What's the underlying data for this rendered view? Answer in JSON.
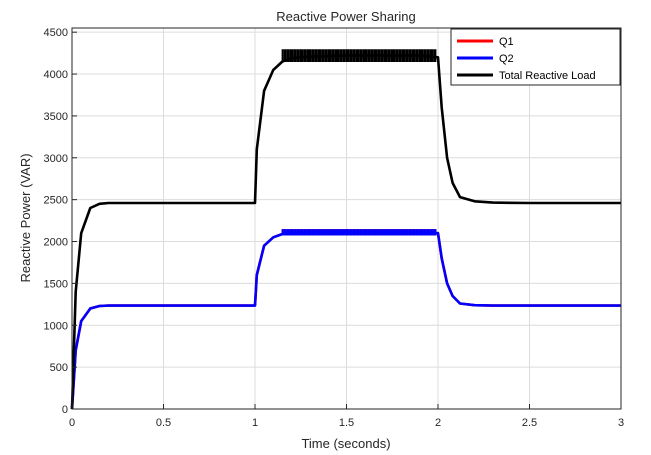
{
  "chart_data": {
    "type": "line",
    "title": "Reactive Power Sharing",
    "xlabel": "Time (seconds)",
    "ylabel": "Reactive Power (VAR)",
    "xlim": [
      0,
      3
    ],
    "ylim": [
      0,
      4550
    ],
    "xticks": [
      0,
      0.5,
      1,
      1.5,
      2,
      2.5,
      3
    ],
    "xtick_labels": [
      "0",
      "0.5",
      "1",
      "1.5",
      "2",
      "2.5",
      "3"
    ],
    "yticks": [
      0,
      500,
      1000,
      1500,
      2000,
      2500,
      3000,
      3500,
      4000,
      4500
    ],
    "ytick_labels": [
      "0",
      "500",
      "1000",
      "1500",
      "2000",
      "2500",
      "3000",
      "3500",
      "4000",
      "4500"
    ],
    "grid": true,
    "legend_position": "top-right",
    "series": [
      {
        "name": "Q1",
        "color": "#ff0000",
        "x": [
          0,
          0.02,
          0.05,
          0.1,
          0.15,
          0.2,
          0.5,
          1.0,
          1.01,
          1.05,
          1.1,
          1.15,
          1.2,
          1.3,
          1.5,
          1.7,
          1.9,
          2.0,
          2.02,
          2.05,
          2.08,
          2.12,
          2.2,
          2.3,
          2.5,
          3.0
        ],
        "y": [
          0,
          700,
          1050,
          1200,
          1230,
          1235,
          1235,
          1235,
          1600,
          1950,
          2050,
          2090,
          2100,
          2110,
          2110,
          2110,
          2110,
          2100,
          1800,
          1500,
          1350,
          1260,
          1240,
          1235,
          1235,
          1235
        ]
      },
      {
        "name": "Q2",
        "color": "#0000ff",
        "x": [
          0,
          0.02,
          0.05,
          0.1,
          0.15,
          0.2,
          0.5,
          1.0,
          1.01,
          1.05,
          1.1,
          1.15,
          1.2,
          1.3,
          1.5,
          1.7,
          1.9,
          2.0,
          2.02,
          2.05,
          2.08,
          2.12,
          2.2,
          2.3,
          2.5,
          3.0
        ],
        "y": [
          0,
          700,
          1050,
          1200,
          1230,
          1235,
          1235,
          1235,
          1600,
          1950,
          2050,
          2090,
          2100,
          2110,
          2110,
          2110,
          2110,
          2100,
          1800,
          1500,
          1350,
          1260,
          1240,
          1235,
          1235,
          1235
        ]
      },
      {
        "name": "Total Reactive Load",
        "color": "#000000",
        "x": [
          0,
          0.02,
          0.05,
          0.1,
          0.15,
          0.2,
          0.5,
          1.0,
          1.01,
          1.05,
          1.1,
          1.15,
          1.2,
          1.3,
          1.5,
          1.7,
          1.9,
          2.0,
          2.02,
          2.05,
          2.08,
          2.12,
          2.2,
          2.3,
          2.5,
          3.0
        ],
        "y": [
          0,
          1400,
          2100,
          2400,
          2450,
          2460,
          2460,
          2460,
          3100,
          3800,
          4050,
          4150,
          4190,
          4210,
          4220,
          4220,
          4220,
          4200,
          3600,
          3000,
          2700,
          2530,
          2480,
          2465,
          2460,
          2460
        ]
      }
    ]
  }
}
